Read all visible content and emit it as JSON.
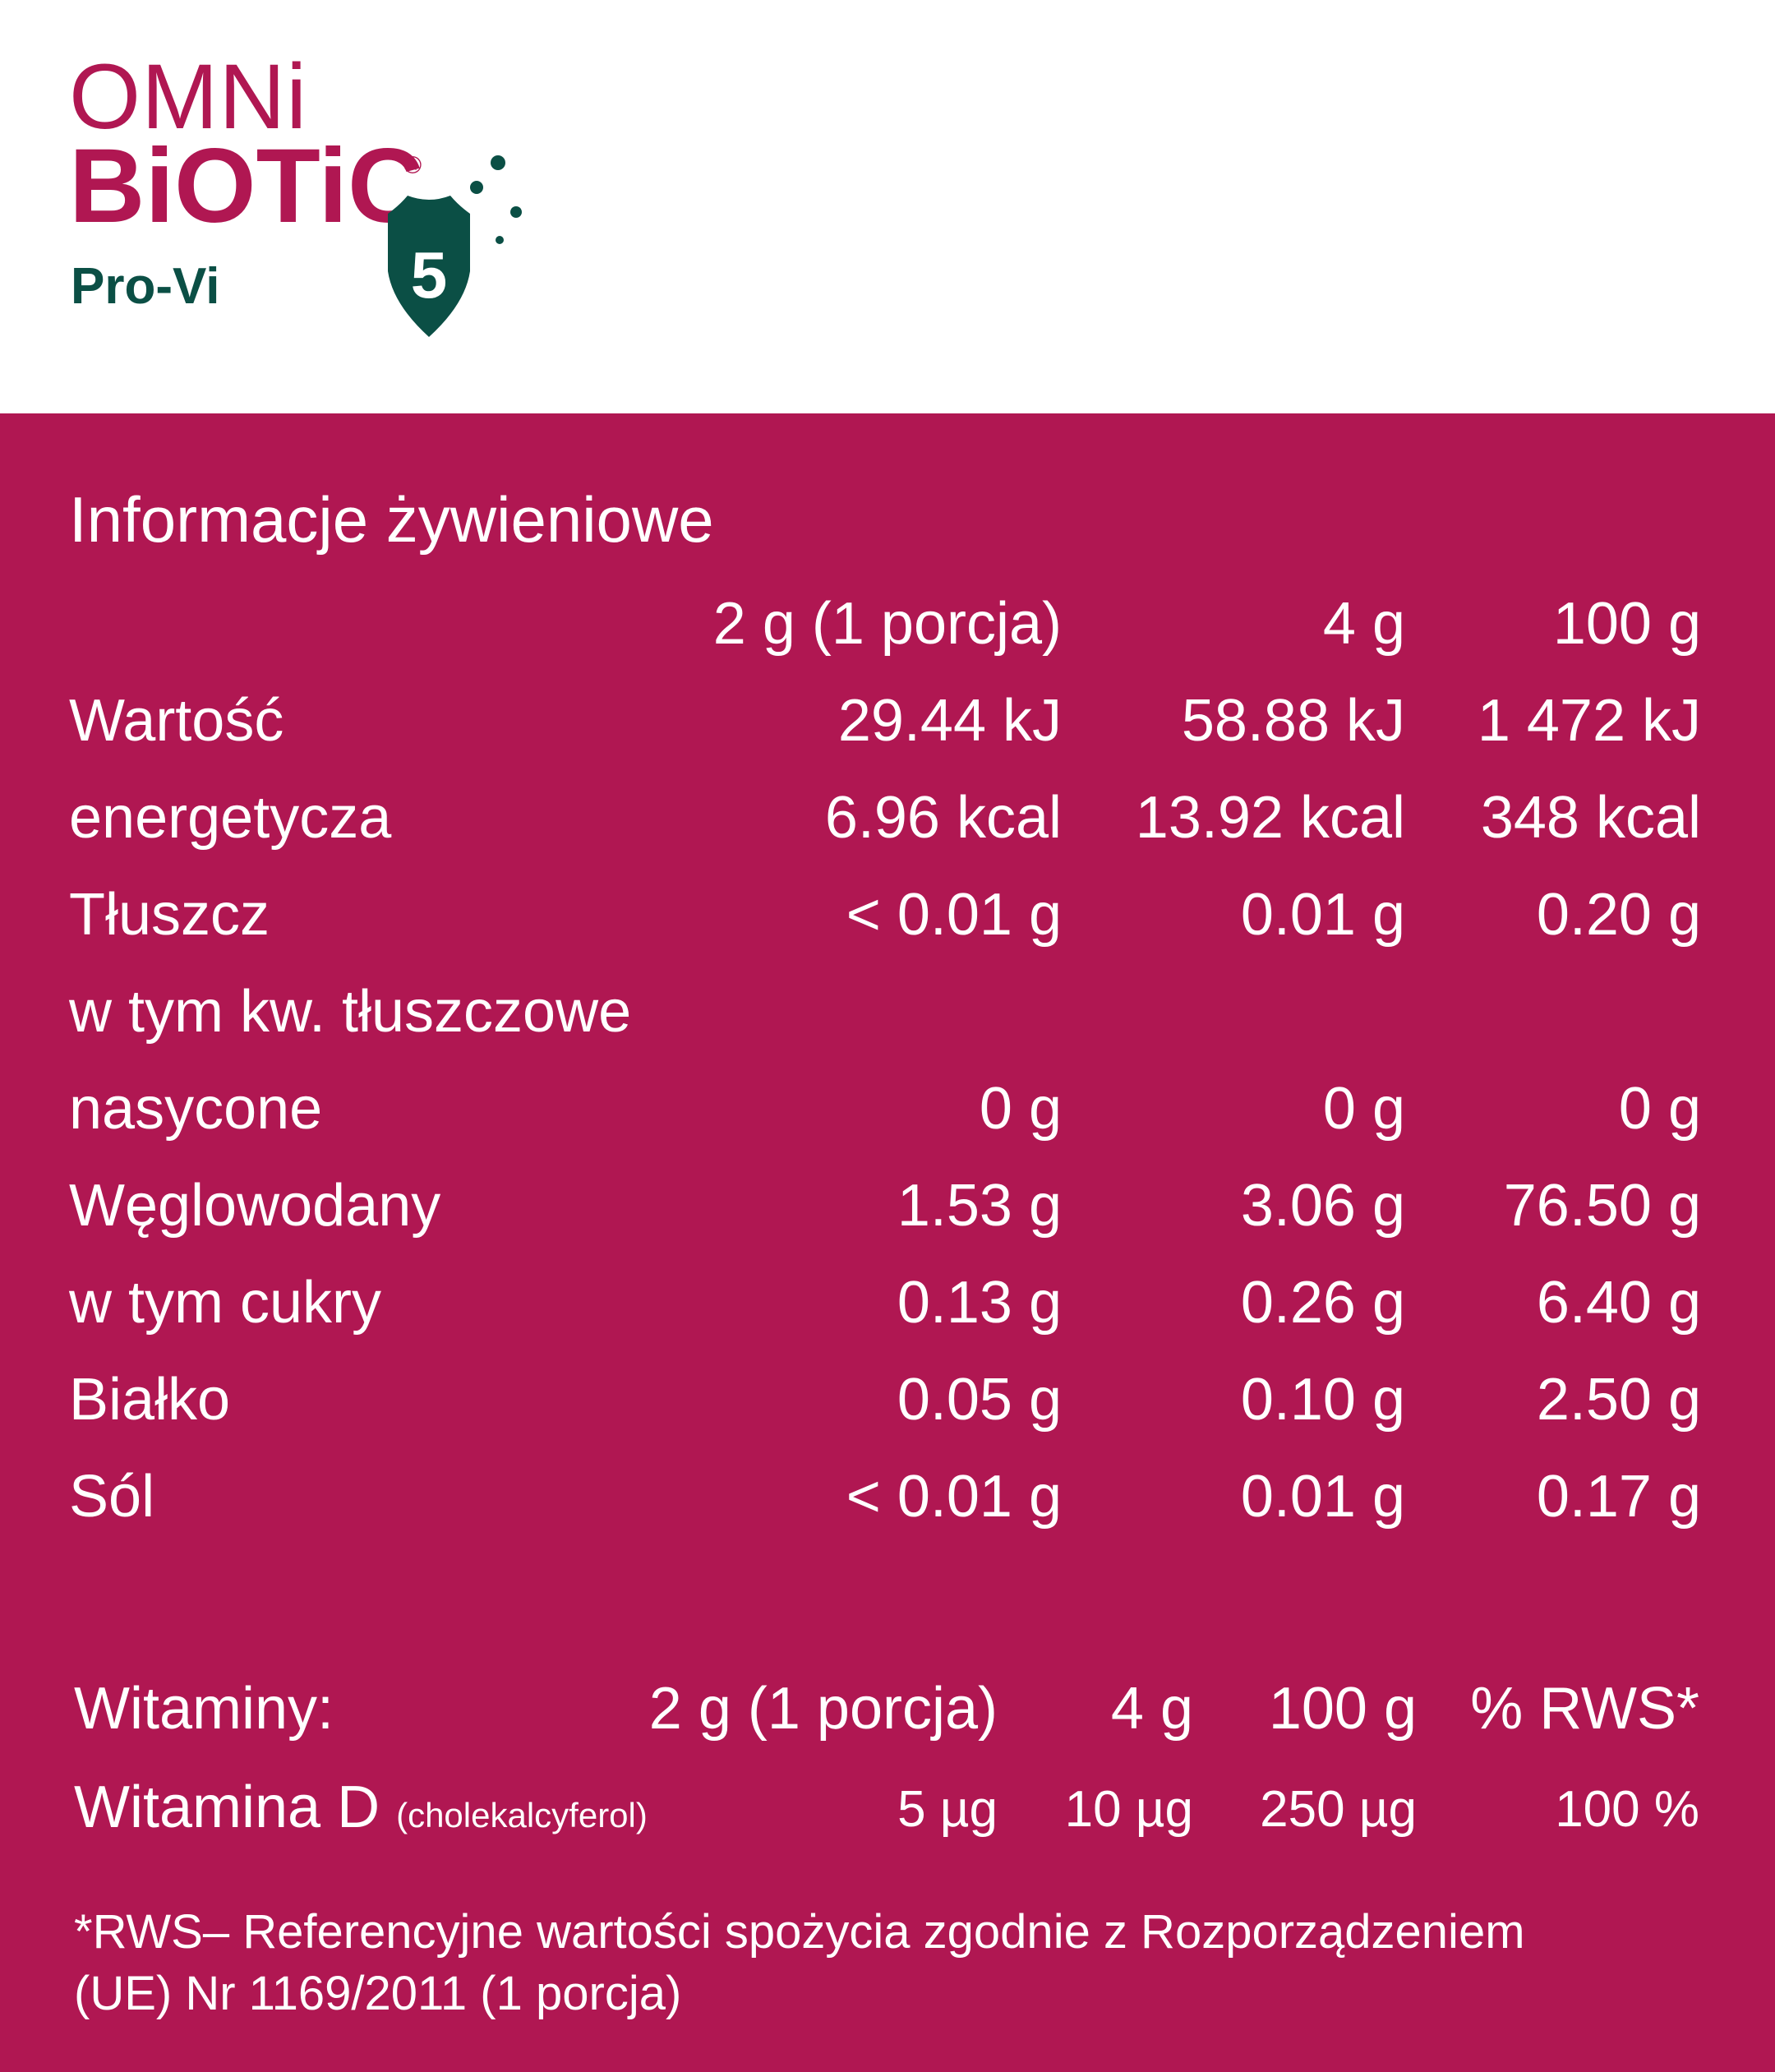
{
  "logo": {
    "line1": "OMNi",
    "line2": "BiOTiC",
    "registered": "®",
    "line3": "Pro-Vi",
    "badge_number": "5",
    "brand_color": "#b01752",
    "green_color": "#0b4f45"
  },
  "nutrition": {
    "title": "Informacje żywieniowe",
    "headers": [
      "2 g (1 porcja)",
      "4 g",
      "100 g"
    ],
    "rows": [
      {
        "label": "Wartość",
        "values": [
          "29.44 kJ",
          "58.88 kJ",
          "1 472 kJ"
        ]
      },
      {
        "label": "energetycza",
        "values": [
          "6.96 kcal",
          "13.92 kcal",
          "348 kcal"
        ]
      },
      {
        "label": "Tłuszcz",
        "values": [
          "< 0.01 g",
          "0.01 g",
          "0.20 g"
        ]
      },
      {
        "label": "w tym kw. tłuszczowe",
        "values": [
          "",
          "",
          ""
        ]
      },
      {
        "label": "nasycone",
        "values": [
          "0 g",
          "0 g",
          "0 g"
        ]
      },
      {
        "label": "Węglowodany",
        "values": [
          "1.53 g",
          "3.06 g",
          "76.50 g"
        ]
      },
      {
        "label": "w tym cukry",
        "values": [
          "0.13 g",
          "0.26 g",
          "6.40 g"
        ]
      },
      {
        "label": "Białko",
        "values": [
          "0.05 g",
          "0.10 g",
          "2.50 g"
        ]
      },
      {
        "label": "Sól",
        "values": [
          "< 0.01 g",
          "0.01 g",
          "0.17 g"
        ]
      }
    ]
  },
  "vitamins": {
    "label": "Witaminy:",
    "headers": [
      "2 g (1 porcja)",
      "4 g",
      "100 g",
      "% RWS*"
    ],
    "row": {
      "label": "Witamina D",
      "sublabel": "(cholekalcyferol)",
      "values": [
        "5 µg",
        "10 µg",
        "250 µg",
        "100 %"
      ]
    }
  },
  "footnote": {
    "line1": "*RWS– Referencyjne wartości spożycia zgodnie z Rozporządzeniem",
    "line2": "(UE) Nr 1169/2011 (1 porcja)"
  },
  "colors": {
    "panel": "#b01752",
    "text": "#ffffff"
  }
}
